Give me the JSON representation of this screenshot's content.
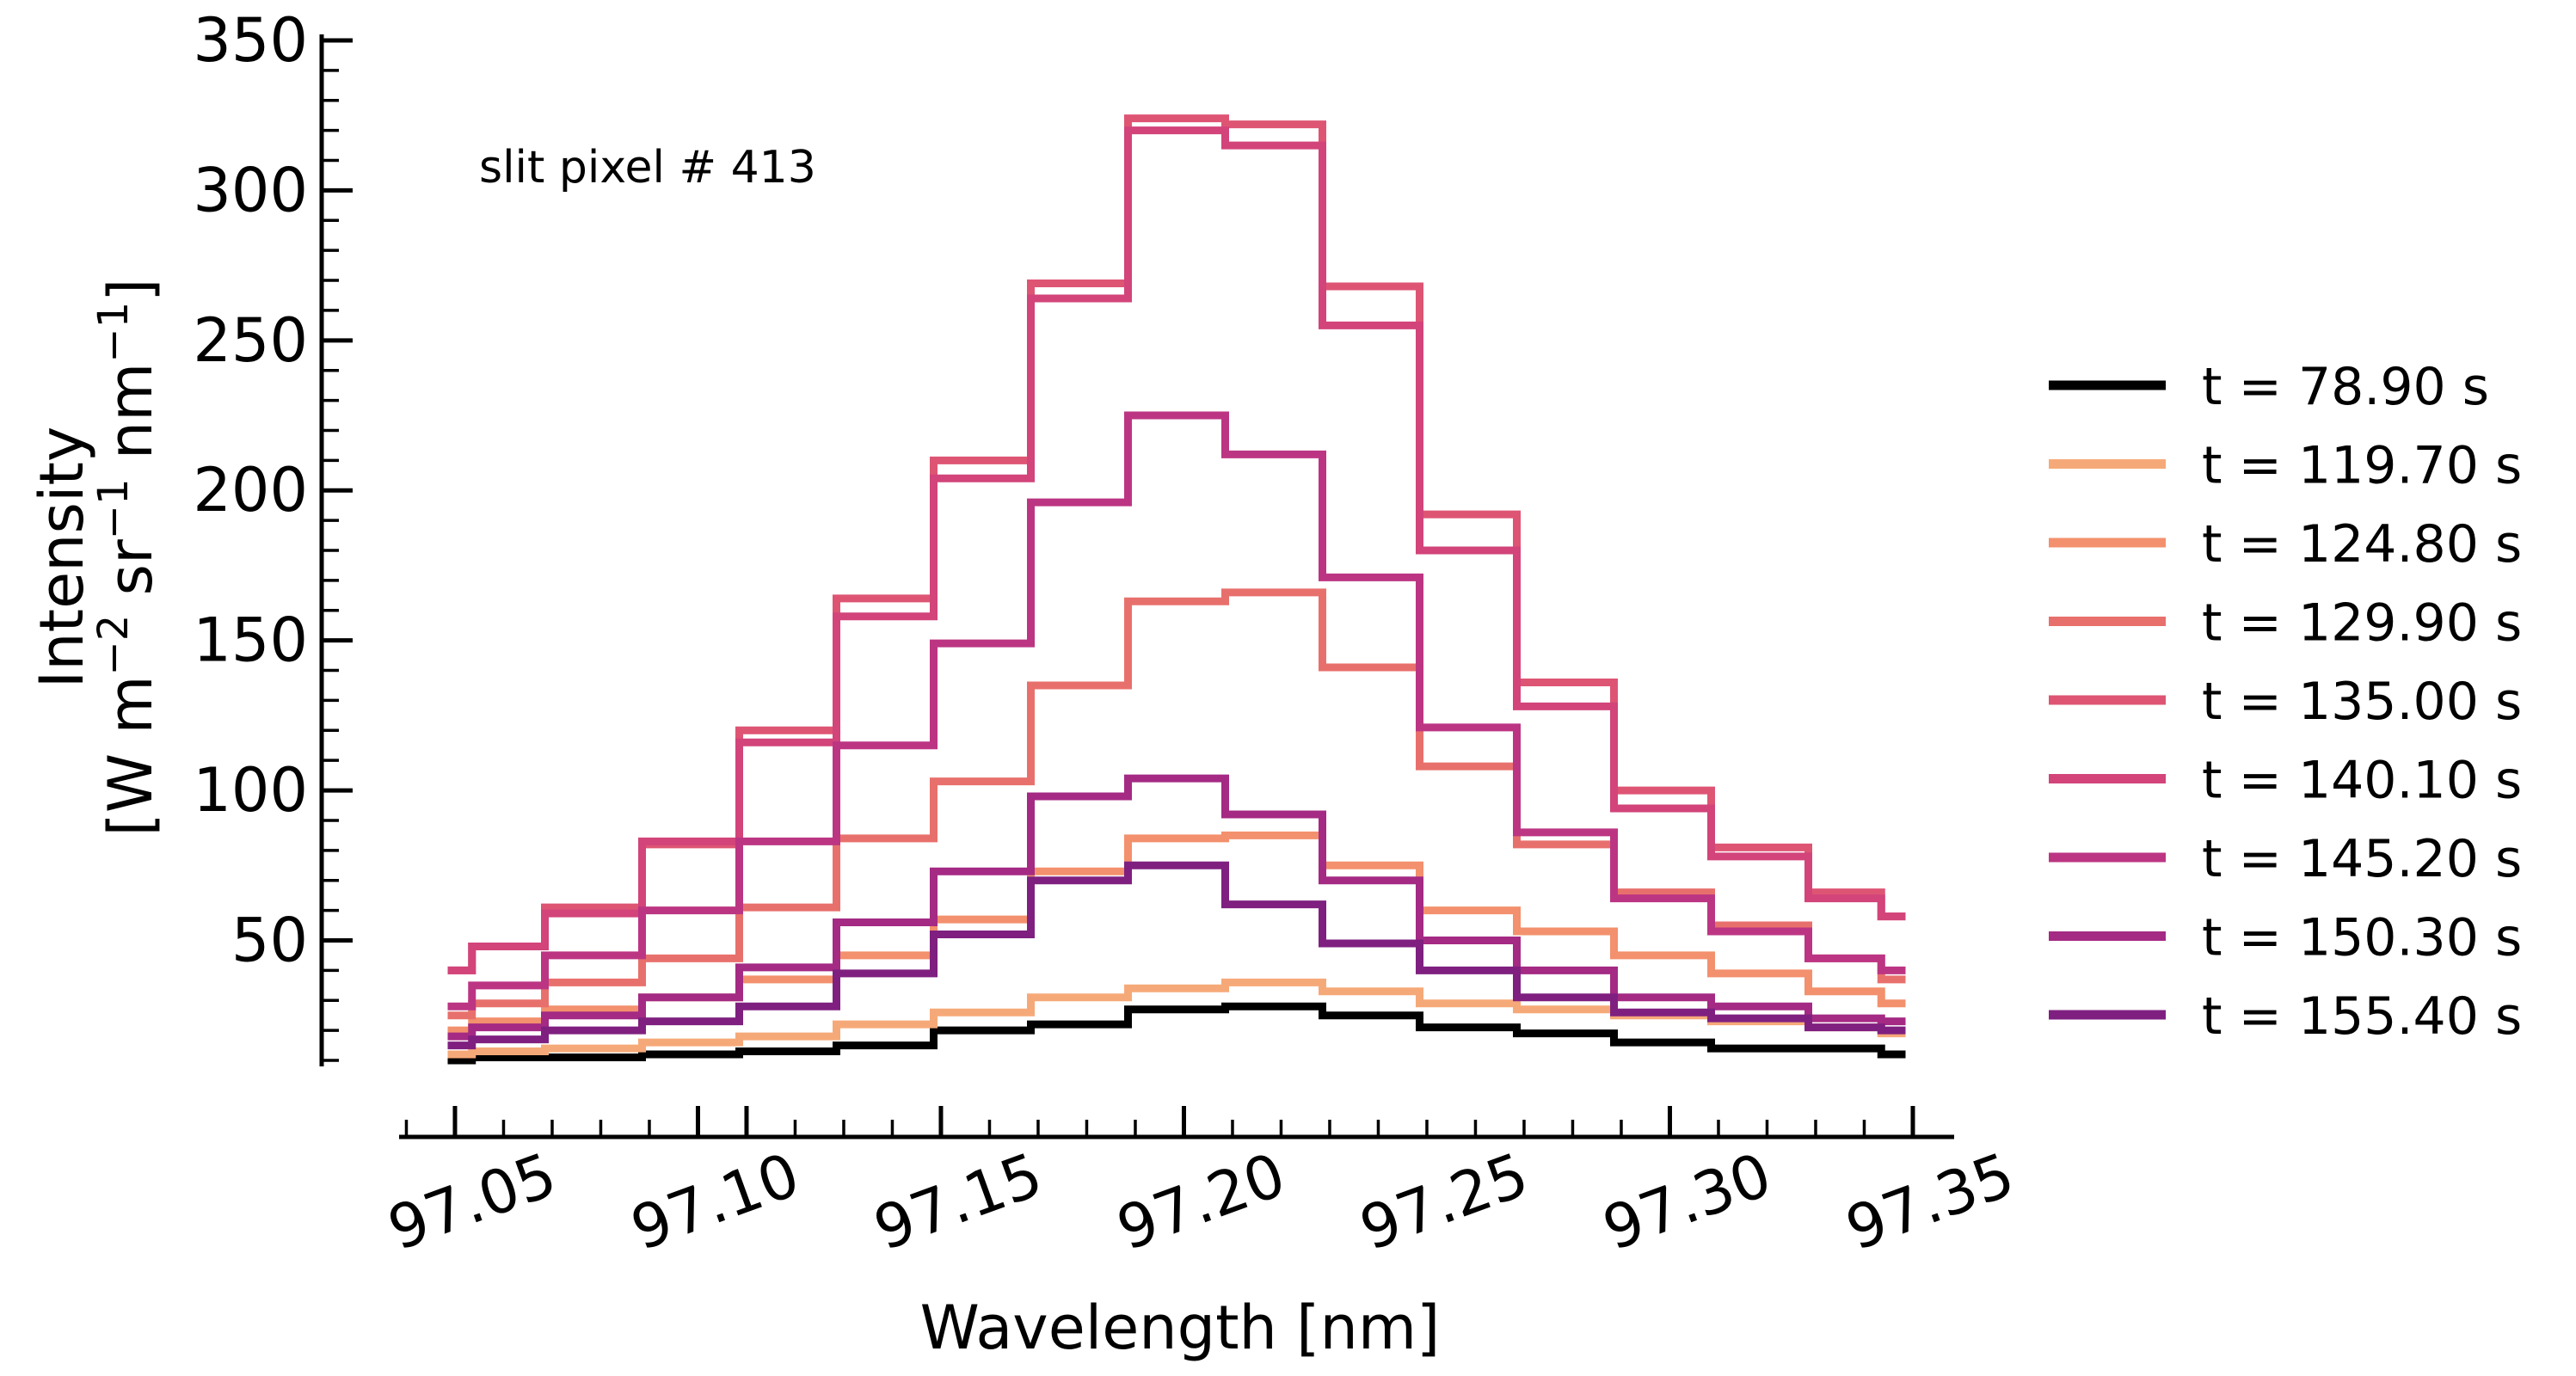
{
  "chart_data": {
    "type": "line",
    "drawstyle": "steps-mid",
    "annotation": "slit pixel # 413",
    "xlabel": "Wavelength [nm]",
    "ylabel_line1": "Intensity",
    "ylabel_line2": "[W m−2 sr−1 nm−1]",
    "xlim": [
      97.0335,
      97.3535
    ],
    "ylim": [
      8,
      352
    ],
    "xticks": [
      97.05,
      97.1,
      97.15,
      97.2,
      97.25,
      97.3,
      97.35
    ],
    "xtick_labels": [
      "97.05",
      "97.10",
      "97.15",
      "97.20",
      "97.25",
      "97.30",
      "97.35"
    ],
    "yticks": [
      50,
      100,
      150,
      200,
      250,
      300,
      350
    ],
    "ytick_labels": [
      "50",
      "100",
      "150",
      "200",
      "250",
      "300",
      "350"
    ],
    "legend_position": "right",
    "x": [
      97.0435,
      97.0535,
      97.0735,
      97.0935,
      97.1135,
      97.1335,
      97.1535,
      97.1735,
      97.1935,
      97.2135,
      97.2335,
      97.2535,
      97.2735,
      97.2935,
      97.3135,
      97.3335,
      97.3435
    ],
    "series": [
      {
        "name": "t = 78.90 s",
        "color": "#000000",
        "values": [
          10,
          11,
          11,
          12,
          13,
          15,
          20,
          22,
          27,
          28,
          25,
          21,
          19,
          16,
          14,
          14,
          12
        ]
      },
      {
        "name": "t = 119.70 s",
        "color": "#f6a978",
        "values": [
          12,
          13,
          14,
          16,
          18,
          22,
          26,
          31,
          34,
          36,
          33,
          29,
          27,
          25,
          23,
          21,
          19
        ]
      },
      {
        "name": "t = 124.80 s",
        "color": "#f3906d",
        "values": [
          20,
          23,
          27,
          31,
          37,
          45,
          57,
          73,
          84,
          85,
          75,
          60,
          53,
          45,
          39,
          33,
          29
        ]
      },
      {
        "name": "t = 129.90 s",
        "color": "#e8706c",
        "values": [
          25,
          29,
          36,
          44,
          61,
          84,
          103,
          135,
          163,
          166,
          141,
          108,
          82,
          66,
          55,
          44,
          37
        ]
      },
      {
        "name": "t = 135.00 s",
        "color": "#de5574",
        "values": [
          40,
          48,
          61,
          82,
          120,
          164,
          210,
          269,
          324,
          322,
          268,
          192,
          136,
          100,
          81,
          66,
          58
        ]
      },
      {
        "name": "t = 140.10 s",
        "color": "#d2447a",
        "values": [
          40,
          48,
          59,
          83,
          116,
          158,
          204,
          264,
          320,
          315,
          255,
          180,
          128,
          94,
          78,
          64,
          58
        ]
      },
      {
        "name": "t = 145.20 s",
        "color": "#bc3583",
        "values": [
          28,
          35,
          45,
          60,
          83,
          115,
          149,
          196,
          225,
          212,
          171,
          121,
          86,
          64,
          53,
          44,
          40
        ]
      },
      {
        "name": "t = 150.30 s",
        "color": "#a42a84",
        "values": [
          18,
          21,
          25,
          31,
          41,
          56,
          73,
          98,
          104,
          92,
          70,
          50,
          40,
          31,
          28,
          24,
          23
        ]
      },
      {
        "name": "t = 155.40 s",
        "color": "#7f2080",
        "values": [
          15,
          17,
          20,
          23,
          28,
          39,
          52,
          70,
          75,
          62,
          49,
          40,
          31,
          26,
          24,
          21,
          20
        ]
      }
    ]
  }
}
